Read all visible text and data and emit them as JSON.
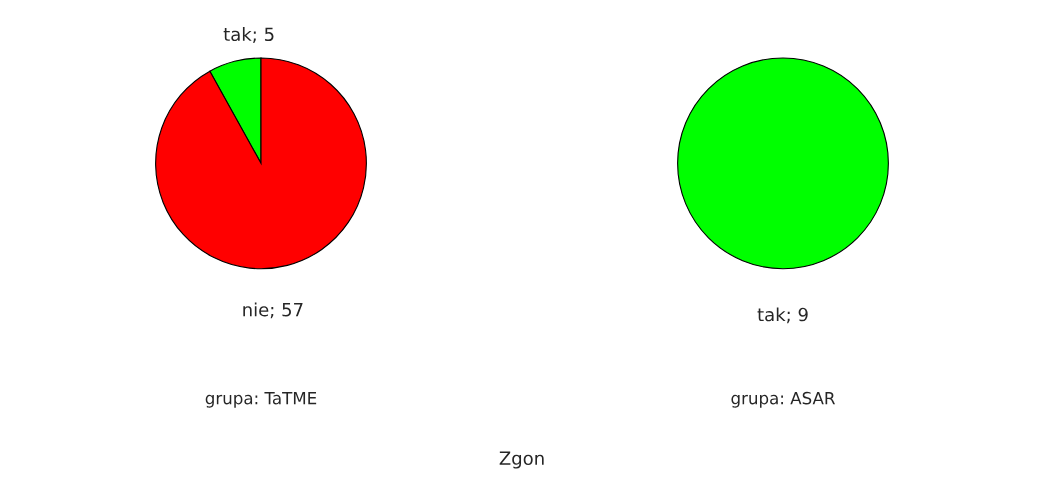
{
  "chart_data": [
    {
      "type": "pie",
      "title": "grupa: TaTME",
      "categories": [
        "tak; 5",
        "nie; 57"
      ],
      "values": [
        5,
        57
      ],
      "colors": [
        "#00ff00",
        "#ff0000"
      ],
      "annotations": [
        "Zgon"
      ]
    },
    {
      "type": "pie",
      "title": "grupa: ASAR",
      "categories": [
        "tak; 9"
      ],
      "values": [
        9
      ],
      "colors": [
        "#00ff00"
      ]
    }
  ]
}
